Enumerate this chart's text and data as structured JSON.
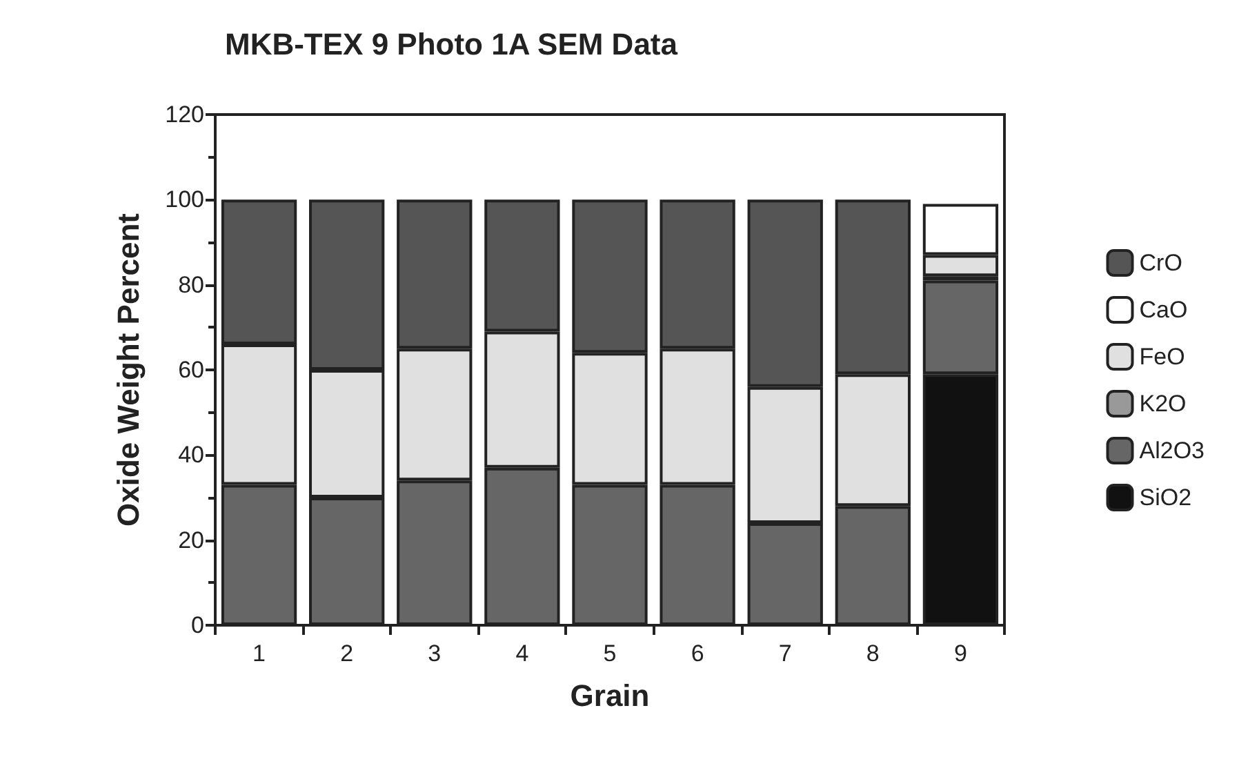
{
  "chart_data": {
    "type": "bar",
    "title": "MKB-TEX 9 Photo 1A SEM Data",
    "xlabel": "Grain",
    "ylabel": "Oxide Weight Percent",
    "categories": [
      "1",
      "2",
      "3",
      "4",
      "5",
      "6",
      "7",
      "8",
      "9"
    ],
    "stacked": true,
    "ylim": [
      0,
      120
    ],
    "yticks": [
      0,
      20,
      40,
      60,
      80,
      100,
      120
    ],
    "grid": false,
    "legend": "right",
    "series": [
      {
        "name": "SiO2",
        "color": "#111111",
        "values": [
          null,
          null,
          null,
          null,
          null,
          null,
          null,
          null,
          59
        ]
      },
      {
        "name": "Al2O3",
        "color": "#666666",
        "values": [
          33,
          30,
          34,
          37,
          33,
          33,
          24,
          28,
          22
        ]
      },
      {
        "name": "K2O",
        "color": "#999999",
        "values": [
          null,
          null,
          null,
          null,
          null,
          null,
          null,
          null,
          1
        ]
      },
      {
        "name": "FeO",
        "color": "#e0e0e0",
        "values": [
          33,
          30,
          31,
          32,
          31,
          32,
          32,
          31,
          5
        ]
      },
      {
        "name": "CaO",
        "color": "#ffffff",
        "values": [
          null,
          null,
          null,
          null,
          null,
          null,
          null,
          null,
          12
        ]
      },
      {
        "name": "CrO",
        "color": "#555555",
        "values": [
          34,
          40,
          35,
          31,
          36,
          35,
          44,
          41,
          null
        ]
      }
    ]
  }
}
